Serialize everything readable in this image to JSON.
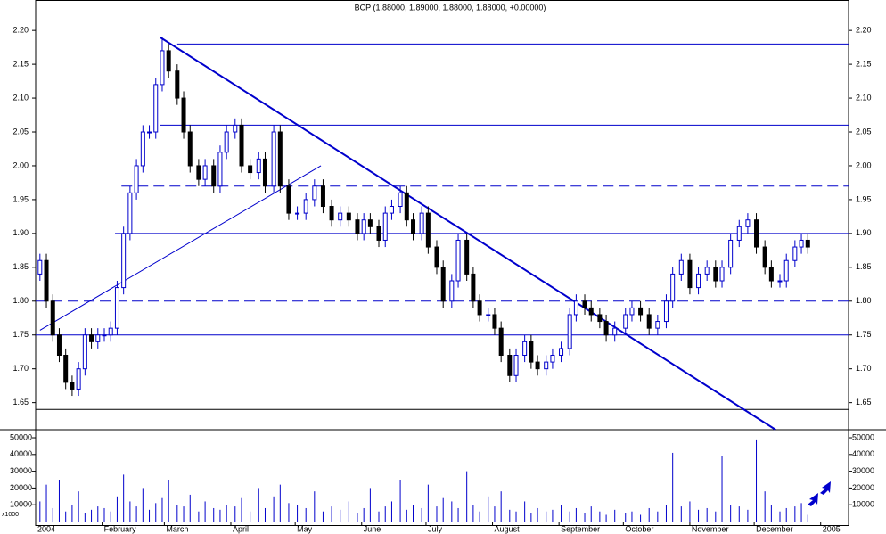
{
  "chart_data": {
    "type": "candlestick",
    "title": "BCP (1.88000, 1.89000, 1.88000, 1.88000, +0.00000)",
    "volume_note": "x1000",
    "up_color": "#ffffff",
    "down_color": "#000000",
    "line_color": "#0000cc",
    "xlim": [
      0,
      379
    ],
    "xticks": [
      {
        "value": 0,
        "label": "2004"
      },
      {
        "value": 31,
        "label": "February"
      },
      {
        "value": 60,
        "label": "March"
      },
      {
        "value": 91,
        "label": "April"
      },
      {
        "value": 121,
        "label": "May"
      },
      {
        "value": 152,
        "label": "June"
      },
      {
        "value": 182,
        "label": "July"
      },
      {
        "value": 213,
        "label": "August"
      },
      {
        "value": 244,
        "label": "September"
      },
      {
        "value": 274,
        "label": "October"
      },
      {
        "value": 305,
        "label": "November"
      },
      {
        "value": 335,
        "label": "December"
      },
      {
        "value": 366,
        "label": "2005"
      }
    ],
    "ylim": [
      1.61,
      2.245
    ],
    "yticks": [
      {
        "value": 1.65,
        "label": "1.65"
      },
      {
        "value": 1.7,
        "label": "1.70"
      },
      {
        "value": 1.75,
        "label": "1.75"
      },
      {
        "value": 1.8,
        "label": "1.80"
      },
      {
        "value": 1.85,
        "label": "1.85"
      },
      {
        "value": 1.9,
        "label": "1.90"
      },
      {
        "value": 1.95,
        "label": "1.95"
      },
      {
        "value": 2.0,
        "label": "2.00"
      },
      {
        "value": 2.05,
        "label": "2.05"
      },
      {
        "value": 2.1,
        "label": "2.10"
      },
      {
        "value": 2.15,
        "label": "2.15"
      },
      {
        "value": 2.2,
        "label": "2.20"
      }
    ],
    "y2lim": [
      0,
      54800
    ],
    "y2ticks": [
      10000,
      20000,
      30000,
      40000,
      50000
    ],
    "levels": [
      {
        "value": 2.18,
        "start": 66,
        "dashed": false
      },
      {
        "value": 2.06,
        "start": 58,
        "dashed": false
      },
      {
        "value": 1.97,
        "start": 40,
        "dashed": true
      },
      {
        "value": 1.9,
        "start": 37,
        "dashed": false
      },
      {
        "value": 1.8,
        "start": 0,
        "dashed": true
      },
      {
        "value": 1.75,
        "start": 0,
        "dashed": false
      },
      {
        "value": 1.64,
        "start": 0,
        "dashed": false
      }
    ],
    "trendlines": [
      {
        "from": [
          58,
          2.19
        ],
        "to": [
          345,
          1.61
        ],
        "width": 2
      },
      {
        "from": [
          2,
          1.757
        ],
        "to": [
          133,
          2.0
        ],
        "width": 1
      }
    ],
    "x": [
      2,
      5,
      8,
      11,
      14,
      17,
      20,
      23,
      26,
      29,
      32,
      35,
      38,
      41,
      44,
      47,
      50,
      53,
      56,
      59,
      62,
      66,
      69,
      72,
      76,
      79,
      83,
      86,
      89,
      93,
      96,
      100,
      104,
      107,
      111,
      114,
      118,
      122,
      126,
      130,
      134,
      138,
      142,
      146,
      150,
      153,
      156,
      160,
      163,
      166,
      170,
      173,
      176,
      180,
      183,
      187,
      190,
      194,
      197,
      201,
      204,
      207,
      211,
      214,
      217,
      221,
      224,
      228,
      231,
      234,
      238,
      241,
      245,
      249,
      252,
      256,
      259,
      263,
      266,
      270,
      275,
      278,
      282,
      286,
      290,
      294,
      297,
      301,
      305,
      309,
      313,
      317,
      320,
      324,
      328,
      332,
      336,
      340,
      343,
      347,
      350,
      354,
      357,
      360
    ],
    "open": [
      1.84,
      1.86,
      1.8,
      1.75,
      1.72,
      1.68,
      1.67,
      1.7,
      1.75,
      1.74,
      1.75,
      1.75,
      1.76,
      1.82,
      1.9,
      1.96,
      2.0,
      2.05,
      2.05,
      2.12,
      2.17,
      2.14,
      2.1,
      2.05,
      2.0,
      1.98,
      2.0,
      1.97,
      2.02,
      2.05,
      2.06,
      2.0,
      1.99,
      2.01,
      1.97,
      2.05,
      1.97,
      1.93,
      1.93,
      1.95,
      1.97,
      1.94,
      1.92,
      1.93,
      1.92,
      1.9,
      1.92,
      1.91,
      1.89,
      1.93,
      1.94,
      1.96,
      1.92,
      1.9,
      1.93,
      1.88,
      1.85,
      1.8,
      1.83,
      1.89,
      1.84,
      1.8,
      1.78,
      1.78,
      1.76,
      1.72,
      1.69,
      1.72,
      1.74,
      1.71,
      1.7,
      1.71,
      1.72,
      1.73,
      1.78,
      1.8,
      1.79,
      1.78,
      1.77,
      1.75,
      1.76,
      1.78,
      1.79,
      1.78,
      1.76,
      1.77,
      1.8,
      1.84,
      1.86,
      1.82,
      1.84,
      1.85,
      1.83,
      1.85,
      1.89,
      1.91,
      1.92,
      1.88,
      1.85,
      1.83,
      1.83,
      1.86,
      1.88,
      1.89
    ],
    "high": [
      1.87,
      1.87,
      1.81,
      1.76,
      1.73,
      1.69,
      1.71,
      1.76,
      1.76,
      1.76,
      1.76,
      1.77,
      1.83,
      1.91,
      1.97,
      2.01,
      2.06,
      2.06,
      2.13,
      2.19,
      2.18,
      2.15,
      2.11,
      2.06,
      2.01,
      2.01,
      2.01,
      2.03,
      2.06,
      2.07,
      2.07,
      2.01,
      2.02,
      2.02,
      2.06,
      2.06,
      1.98,
      1.94,
      1.96,
      1.98,
      1.98,
      1.95,
      1.94,
      1.94,
      1.93,
      1.93,
      1.93,
      1.92,
      1.94,
      1.95,
      1.97,
      1.97,
      1.93,
      1.94,
      1.94,
      1.89,
      1.86,
      1.84,
      1.9,
      1.9,
      1.85,
      1.81,
      1.79,
      1.79,
      1.77,
      1.73,
      1.73,
      1.75,
      1.75,
      1.72,
      1.72,
      1.73,
      1.74,
      1.79,
      1.81,
      1.81,
      1.8,
      1.79,
      1.78,
      1.77,
      1.79,
      1.8,
      1.8,
      1.79,
      1.78,
      1.81,
      1.85,
      1.87,
      1.87,
      1.85,
      1.86,
      1.86,
      1.86,
      1.9,
      1.92,
      1.93,
      1.93,
      1.89,
      1.86,
      1.84,
      1.87,
      1.89,
      1.9,
      1.9
    ],
    "low": [
      1.83,
      1.79,
      1.74,
      1.71,
      1.67,
      1.66,
      1.66,
      1.69,
      1.73,
      1.73,
      1.74,
      1.74,
      1.75,
      1.81,
      1.89,
      1.95,
      1.99,
      2.04,
      2.04,
      2.11,
      2.13,
      2.09,
      2.04,
      1.99,
      1.97,
      1.97,
      1.96,
      1.96,
      2.01,
      2.04,
      1.99,
      1.98,
      1.98,
      1.96,
      1.96,
      1.96,
      1.92,
      1.92,
      1.92,
      1.94,
      1.93,
      1.91,
      1.91,
      1.91,
      1.89,
      1.89,
      1.9,
      1.88,
      1.88,
      1.92,
      1.93,
      1.91,
      1.89,
      1.89,
      1.87,
      1.84,
      1.79,
      1.79,
      1.82,
      1.83,
      1.79,
      1.77,
      1.77,
      1.75,
      1.71,
      1.68,
      1.68,
      1.71,
      1.7,
      1.69,
      1.69,
      1.7,
      1.71,
      1.72,
      1.77,
      1.78,
      1.77,
      1.76,
      1.74,
      1.74,
      1.75,
      1.77,
      1.77,
      1.75,
      1.75,
      1.76,
      1.79,
      1.83,
      1.81,
      1.81,
      1.83,
      1.82,
      1.82,
      1.84,
      1.88,
      1.9,
      1.87,
      1.84,
      1.82,
      1.82,
      1.82,
      1.85,
      1.87,
      1.87
    ],
    "close": [
      1.86,
      1.8,
      1.75,
      1.72,
      1.68,
      1.67,
      1.7,
      1.75,
      1.74,
      1.75,
      1.75,
      1.76,
      1.82,
      1.9,
      1.96,
      2.0,
      2.05,
      2.05,
      2.12,
      2.17,
      2.14,
      2.1,
      2.05,
      2.0,
      1.98,
      2.0,
      1.97,
      2.02,
      2.05,
      2.06,
      2.0,
      1.99,
      2.01,
      1.97,
      2.05,
      1.97,
      1.93,
      1.93,
      1.95,
      1.97,
      1.94,
      1.92,
      1.93,
      1.92,
      1.9,
      1.92,
      1.91,
      1.89,
      1.93,
      1.94,
      1.96,
      1.92,
      1.9,
      1.93,
      1.88,
      1.85,
      1.8,
      1.83,
      1.89,
      1.84,
      1.8,
      1.78,
      1.78,
      1.76,
      1.72,
      1.69,
      1.72,
      1.74,
      1.71,
      1.7,
      1.71,
      1.72,
      1.73,
      1.78,
      1.8,
      1.79,
      1.78,
      1.77,
      1.75,
      1.76,
      1.78,
      1.79,
      1.78,
      1.76,
      1.77,
      1.8,
      1.84,
      1.86,
      1.82,
      1.84,
      1.85,
      1.83,
      1.85,
      1.89,
      1.91,
      1.92,
      1.88,
      1.85,
      1.83,
      1.83,
      1.86,
      1.88,
      1.89,
      1.88
    ],
    "volume": [
      12000,
      22000,
      8000,
      25000,
      6000,
      10000,
      18000,
      5000,
      7000,
      9000,
      8000,
      6000,
      15000,
      28000,
      12000,
      9000,
      20000,
      7000,
      11000,
      14000,
      25000,
      10000,
      9000,
      16000,
      6000,
      12000,
      8000,
      7000,
      10000,
      9000,
      14000,
      6000,
      20000,
      8000,
      15000,
      22000,
      11000,
      10000,
      8000,
      18000,
      6000,
      9000,
      7000,
      12000,
      5000,
      8000,
      20000,
      6000,
      9000,
      12000,
      25000,
      7000,
      10000,
      8000,
      22000,
      9000,
      14000,
      12000,
      8000,
      30000,
      10000,
      6000,
      15000,
      9000,
      18000,
      7000,
      6000,
      12000,
      5000,
      8000,
      6000,
      7000,
      10000,
      6000,
      8000,
      5000,
      9000,
      6000,
      4000,
      7000,
      5000,
      6000,
      4000,
      8000,
      6000,
      10000,
      41000,
      9000,
      12000,
      7000,
      8000,
      6000,
      39000,
      10000,
      9000,
      7000,
      49000,
      18000,
      10000,
      6000,
      8000,
      9000,
      11000,
      4000
    ]
  }
}
